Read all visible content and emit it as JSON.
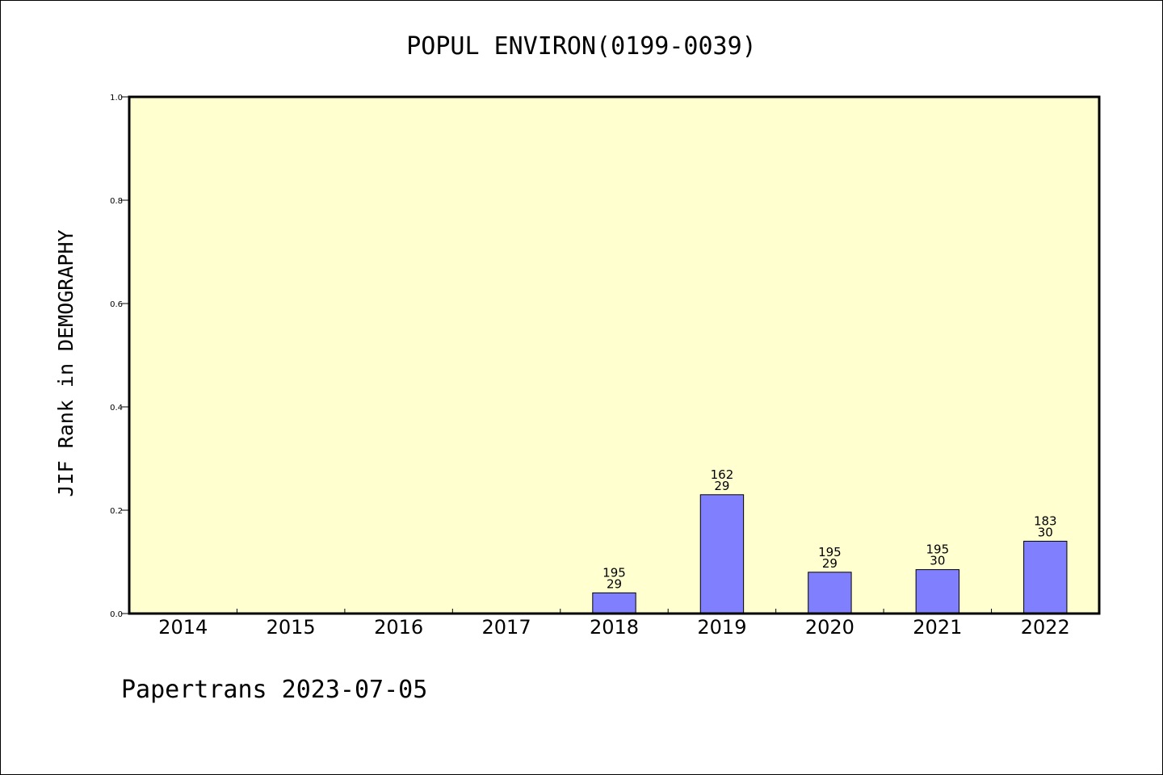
{
  "chart_data": {
    "type": "bar",
    "title": "POPUL ENVIRON(0199-0039)",
    "ylabel": "JIF Rank in DEMOGRAPHY",
    "xlabel": "",
    "ylim": [
      0,
      1.0
    ],
    "yticks": [
      "0.0",
      "0.2",
      "0.4",
      "0.6",
      "0.8",
      "1.0"
    ],
    "categories": [
      "2014",
      "2015",
      "2016",
      "2017",
      "2018",
      "2019",
      "2020",
      "2021",
      "2022"
    ],
    "values": [
      null,
      null,
      null,
      null,
      0.04,
      0.23,
      0.08,
      0.085,
      0.14
    ],
    "bar_labels": [
      null,
      null,
      null,
      null,
      {
        "top": "195",
        "bottom": "29"
      },
      {
        "top": "162",
        "bottom": "29"
      },
      {
        "top": "195",
        "bottom": "29"
      },
      {
        "top": "195",
        "bottom": "30"
      },
      {
        "top": "183",
        "bottom": "30"
      }
    ],
    "grid": false,
    "colors": {
      "plot_background": "#ffffd0",
      "bar_fill": "#8080ff",
      "bar_stroke": "#000000"
    }
  },
  "footer": "Papertrans 2023-07-05"
}
